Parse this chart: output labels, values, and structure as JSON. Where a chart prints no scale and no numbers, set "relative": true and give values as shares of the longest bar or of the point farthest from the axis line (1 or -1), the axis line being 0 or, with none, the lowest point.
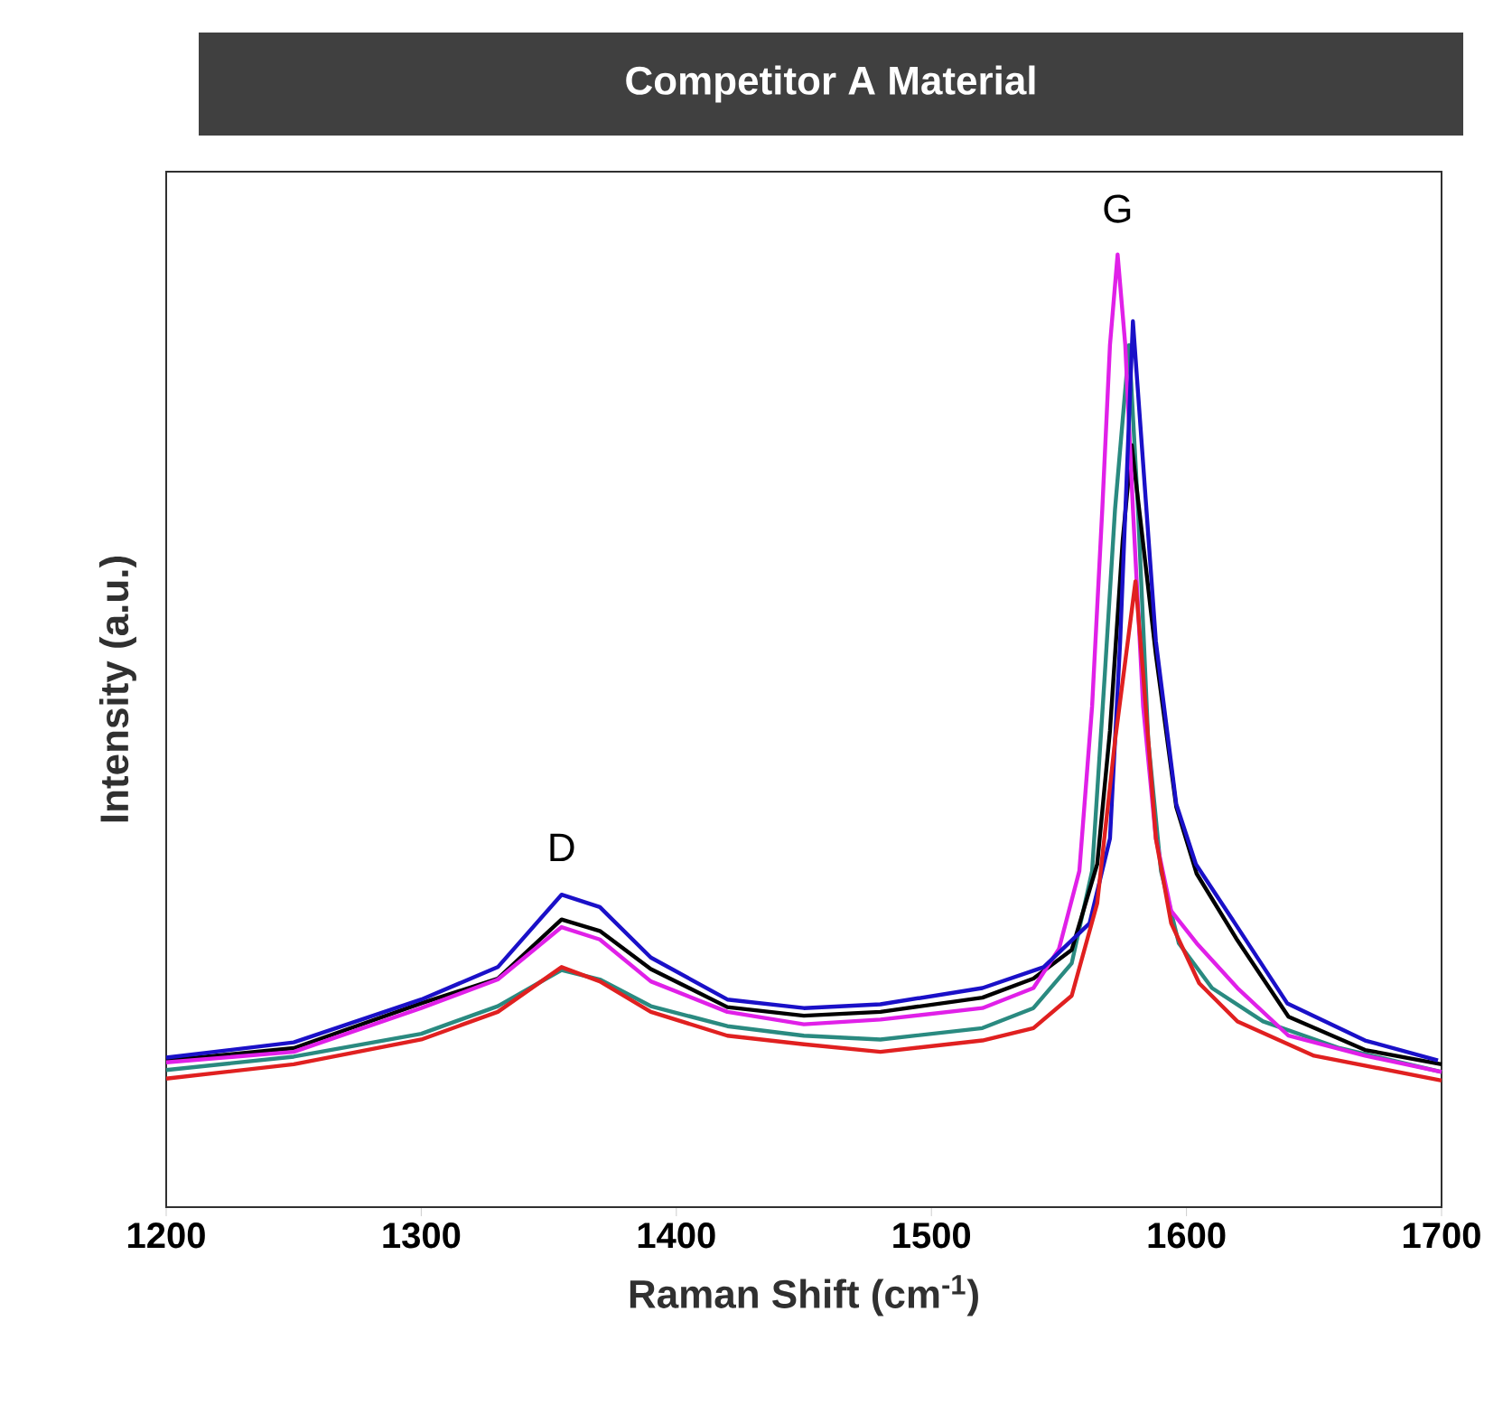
{
  "chart_data": {
    "type": "line",
    "title": "Competitor A Material",
    "xlabel": "Raman Shift (cm$^{-1}$)",
    "ylabel": "Intensity (a.u.)",
    "relative": true,
    "xlim": [
      1200,
      1700
    ],
    "xticks": [
      1200,
      1300,
      1400,
      1500,
      1600,
      1700
    ],
    "annotations": [
      {
        "text": "D",
        "x": 1355,
        "y": 0.33
      },
      {
        "text": "G",
        "x": 1573,
        "y": 1.0
      }
    ],
    "series": [
      {
        "color": "#e02020",
        "x": [
          1200,
          1250,
          1300,
          1330,
          1355,
          1370,
          1390,
          1420,
          1450,
          1480,
          1520,
          1540,
          1555,
          1565,
          1572,
          1577,
          1580,
          1583,
          1588,
          1594,
          1605,
          1620,
          1650,
          1700
        ],
        "values": [
          0.135,
          0.15,
          0.176,
          0.205,
          0.252,
          0.237,
          0.205,
          0.18,
          0.171,
          0.163,
          0.175,
          0.188,
          0.222,
          0.319,
          0.49,
          0.594,
          0.657,
          0.56,
          0.387,
          0.298,
          0.235,
          0.195,
          0.159,
          0.133
        ]
      },
      {
        "color": "#2a8a80",
        "x": [
          1200,
          1250,
          1300,
          1330,
          1355,
          1370,
          1390,
          1420,
          1450,
          1480,
          1520,
          1540,
          1555,
          1563,
          1568,
          1572,
          1577.5,
          1581,
          1585,
          1590,
          1597,
          1610,
          1630,
          1660,
          1700
        ],
        "values": [
          0.144,
          0.158,
          0.182,
          0.211,
          0.249,
          0.239,
          0.211,
          0.19,
          0.18,
          0.176,
          0.188,
          0.209,
          0.256,
          0.353,
          0.56,
          0.733,
          0.905,
          0.733,
          0.49,
          0.353,
          0.277,
          0.23,
          0.195,
          0.167,
          0.142
        ]
      },
      {
        "color": "#000000",
        "x": [
          1200,
          1250,
          1300,
          1330,
          1355,
          1370,
          1390,
          1420,
          1450,
          1480,
          1520,
          1540,
          1555,
          1565,
          1570,
          1575,
          1578.5,
          1582,
          1588,
          1596,
          1604,
          1620,
          1640,
          1670,
          1700
        ],
        "values": [
          0.154,
          0.167,
          0.214,
          0.24,
          0.302,
          0.29,
          0.25,
          0.21,
          0.201,
          0.205,
          0.22,
          0.24,
          0.27,
          0.36,
          0.5,
          0.7,
          0.8,
          0.72,
          0.58,
          0.42,
          0.35,
          0.28,
          0.2,
          0.165,
          0.15
        ]
      },
      {
        "color": "#e020e8",
        "x": [
          1200,
          1250,
          1300,
          1330,
          1355,
          1370,
          1390,
          1420,
          1450,
          1480,
          1520,
          1540,
          1550,
          1558,
          1563,
          1567,
          1570,
          1573,
          1576,
          1579,
          1583,
          1588,
          1594,
          1604,
          1620,
          1640,
          1670,
          1700
        ],
        "values": [
          0.152,
          0.163,
          0.209,
          0.239,
          0.294,
          0.281,
          0.237,
          0.205,
          0.192,
          0.197,
          0.209,
          0.23,
          0.271,
          0.353,
          0.526,
          0.733,
          0.905,
          1.0,
          0.905,
          0.733,
          0.526,
          0.387,
          0.311,
          0.277,
          0.23,
          0.18,
          0.159,
          0.142
        ]
      },
      {
        "color": "#1a10c8",
        "x": [
          1200,
          1250,
          1300,
          1330,
          1355,
          1370,
          1390,
          1420,
          1450,
          1480,
          1520,
          1544,
          1562,
          1570,
          1574,
          1579,
          1588,
          1596,
          1603.7,
          1619,
          1639.5,
          1670,
          1698.6
        ],
        "values": [
          0.157,
          0.173,
          0.218,
          0.252,
          0.328,
          0.315,
          0.262,
          0.218,
          0.209,
          0.213,
          0.23,
          0.252,
          0.298,
          0.387,
          0.594,
          0.93,
          0.594,
          0.423,
          0.36,
          0.298,
          0.214,
          0.175,
          0.154
        ]
      }
    ]
  }
}
